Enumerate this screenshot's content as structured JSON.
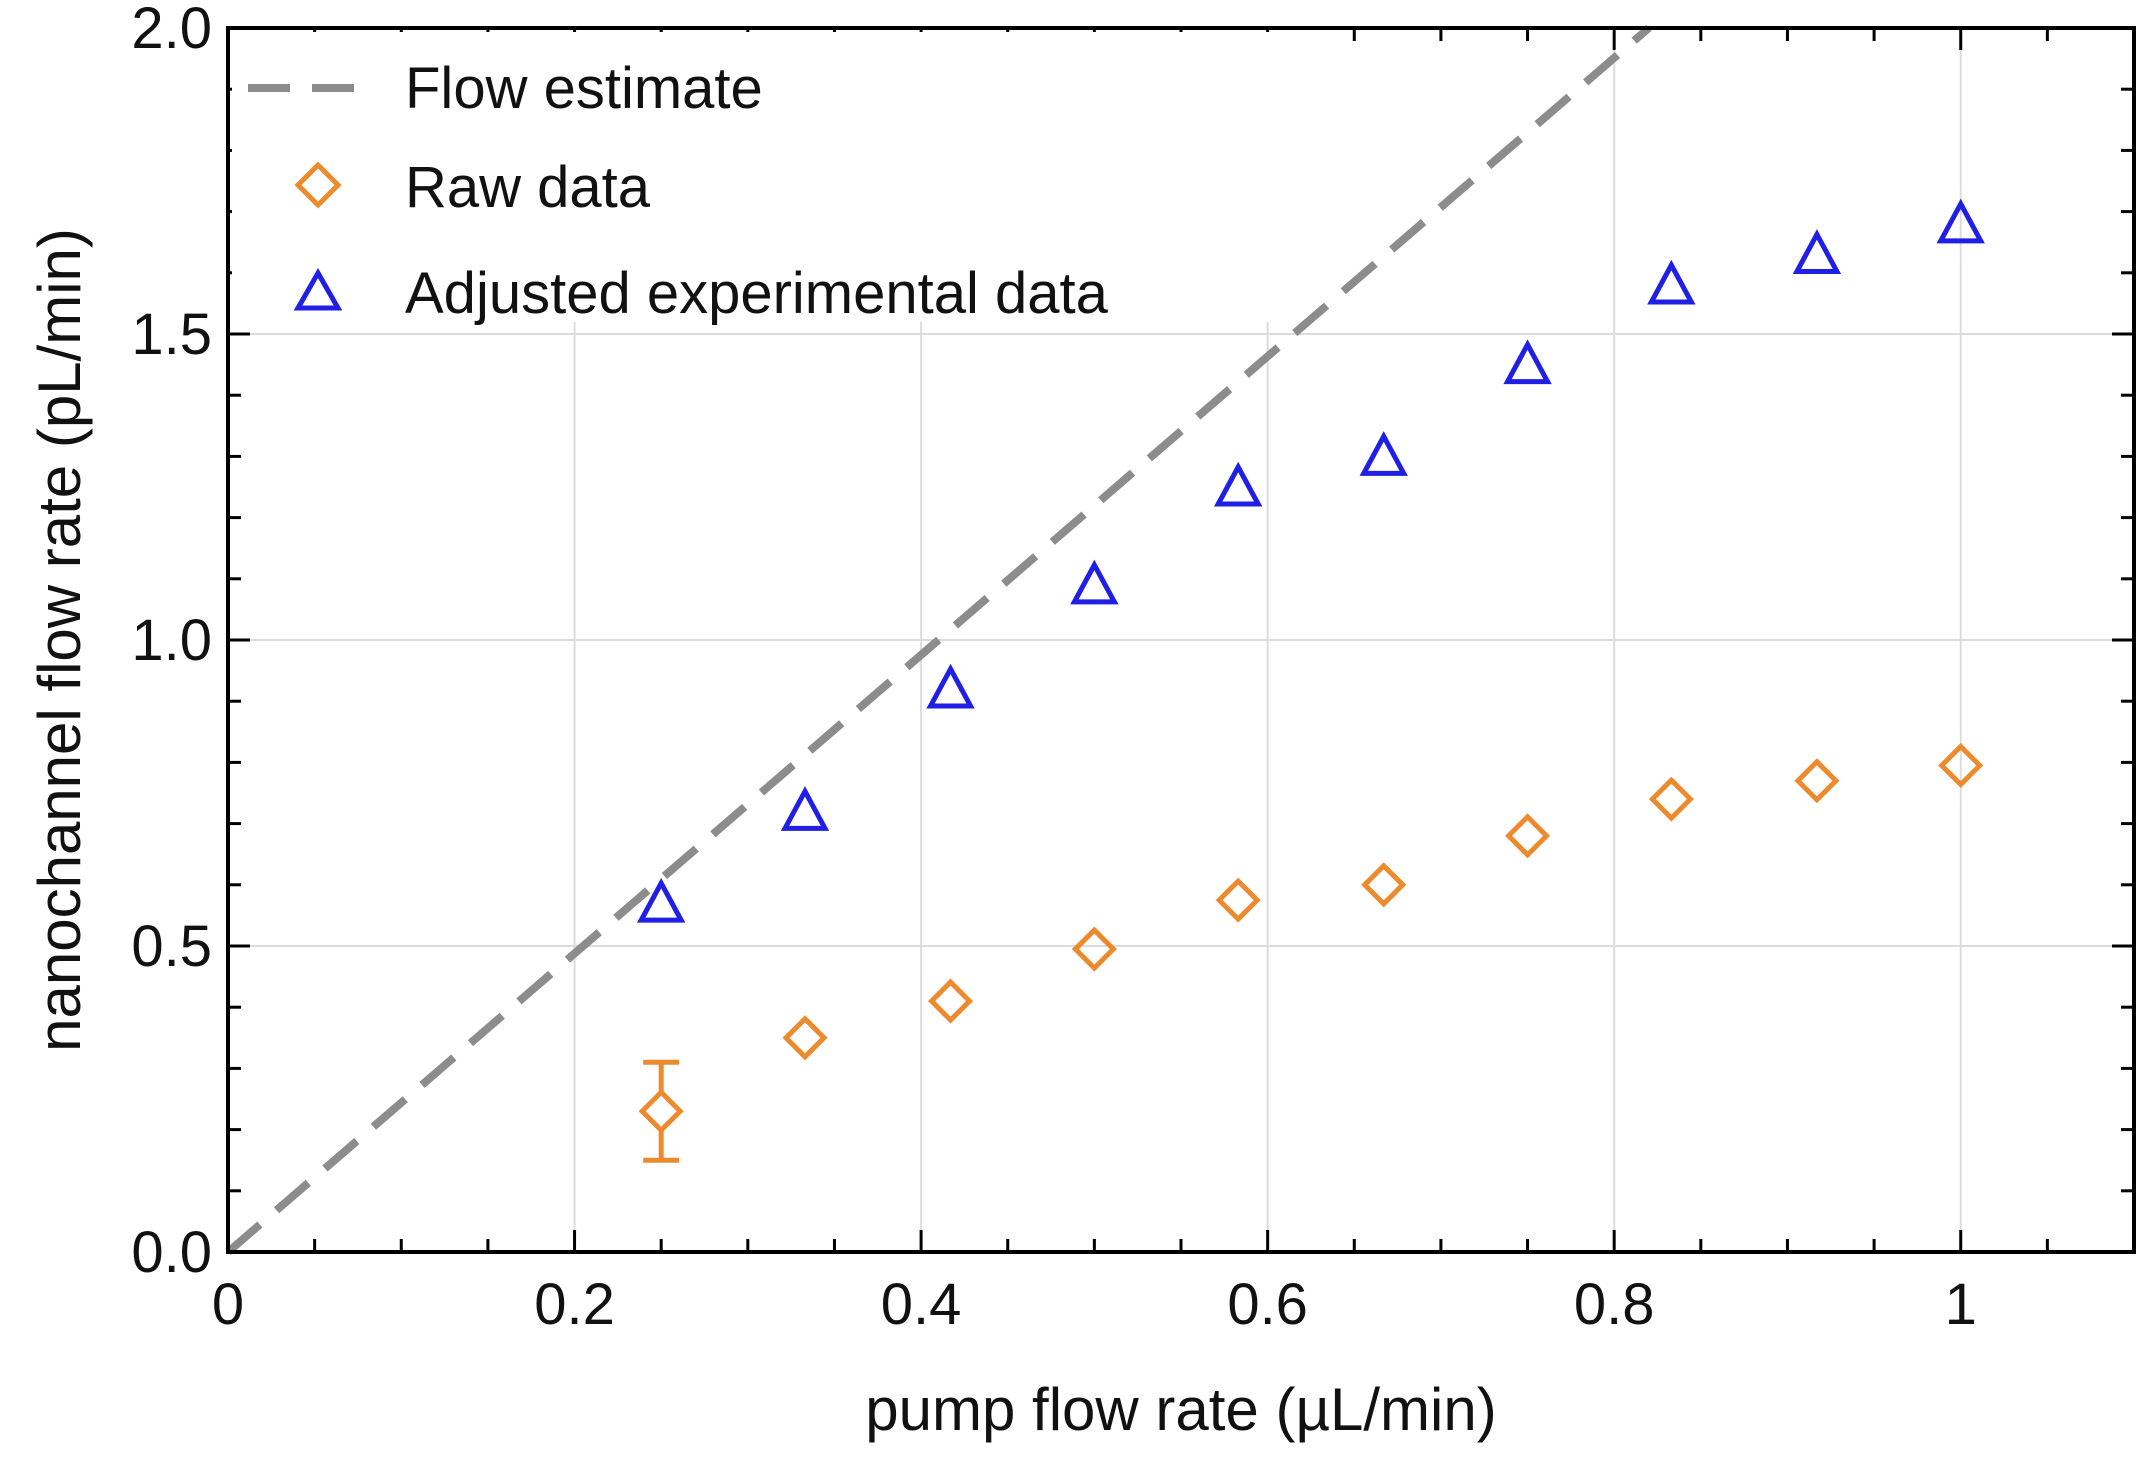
{
  "chart_data": {
    "type": "scatter",
    "title": "",
    "xlabel": "pump flow rate (µL/min)",
    "ylabel": "nanochannel flow rate (pL/min)",
    "xlim": [
      0,
      1.1
    ],
    "ylim": [
      0,
      2.0
    ],
    "xticks": [
      0,
      0.2,
      0.4,
      0.6,
      0.8,
      1
    ],
    "xtick_labels": [
      "0",
      "0.2",
      "0.4",
      "0.6",
      "0.8",
      "1"
    ],
    "yticks": [
      0,
      0.5,
      1.0,
      1.5,
      2.0
    ],
    "ytick_labels": [
      "0.0",
      "0.5",
      "1.0",
      "1.5",
      "2.0"
    ],
    "x_minor_step": 0.05,
    "y_minor_step": 0.1,
    "grid": true,
    "legend_position": "top-left",
    "series": [
      {
        "name": "Flow estimate",
        "kind": "line",
        "style": "dashed",
        "color": "#8c8c8c",
        "x": [
          0,
          0.82
        ],
        "y": [
          0,
          2.0
        ]
      },
      {
        "name": "Raw data",
        "kind": "marker",
        "marker": "diamond",
        "color": "#ee8a2e",
        "x": [
          0.25,
          0.333,
          0.417,
          0.5,
          0.583,
          0.667,
          0.75,
          0.833,
          0.917,
          1.0
        ],
        "y": [
          0.23,
          0.35,
          0.41,
          0.495,
          0.575,
          0.6,
          0.68,
          0.74,
          0.77,
          0.795
        ],
        "error": [
          0.08,
          null,
          null,
          null,
          null,
          null,
          null,
          null,
          null,
          null
        ]
      },
      {
        "name": "Adjusted experimental data",
        "kind": "marker",
        "marker": "triangle",
        "color": "#1f1fe6",
        "x": [
          0.25,
          0.333,
          0.417,
          0.5,
          0.583,
          0.667,
          0.75,
          0.833,
          0.917,
          1.0
        ],
        "y": [
          0.57,
          0.72,
          0.92,
          1.09,
          1.25,
          1.3,
          1.45,
          1.58,
          1.63,
          1.68
        ]
      }
    ]
  }
}
